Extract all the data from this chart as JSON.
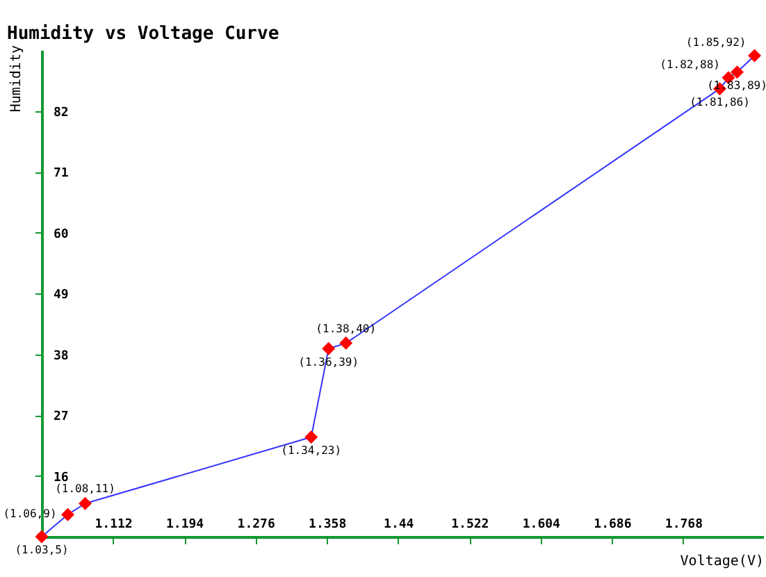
{
  "chart_data": {
    "type": "line",
    "title": "Humidity vs Voltage Curve",
    "xlabel": "Voltage(V)",
    "ylabel": "Humidity",
    "xlim": [
      1.03,
      1.86
    ],
    "ylim": [
      5,
      93
    ],
    "xticks": [
      1.112,
      1.194,
      1.276,
      1.358,
      1.44,
      1.522,
      1.604,
      1.686,
      1.768
    ],
    "yticks": [
      16,
      27,
      38,
      49,
      60,
      71,
      82
    ],
    "series": [
      {
        "color": "#3333ff",
        "x": [
          1.03,
          1.06,
          1.08,
          1.34,
          1.36,
          1.38,
          1.81,
          1.82,
          1.83,
          1.85
        ],
        "values": [
          5,
          9,
          11,
          23,
          39,
          40,
          86,
          88,
          89,
          92
        ],
        "colors": [
          "#ff0000",
          "#ff0000",
          "#ff0000",
          "#ff0000",
          "#ff0000",
          "#ff0000",
          "#ff0000",
          "#ff0000",
          "#ff0000",
          "#ff0000"
        ],
        "value_labels": [
          "(1.03,5)",
          "(1.06,9)",
          "(1.08,11)",
          "(1.34,23)",
          "(1.36,39)",
          "(1.38,40)",
          "(1.81,86)",
          "(1.82,88)",
          "(1.83,89)",
          "(1.85,92)"
        ]
      }
    ],
    "marker": "diamond"
  }
}
